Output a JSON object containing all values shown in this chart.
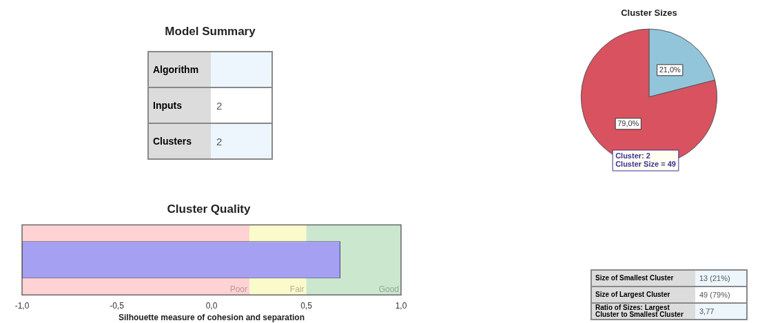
{
  "chart_data": [
    {
      "type": "other",
      "title": "Model Summary",
      "categories": [
        "Algorithm",
        "Inputs",
        "Clusters"
      ],
      "values": [
        null,
        2,
        2
      ],
      "data_labels": true
    },
    {
      "type": "pie",
      "title": "Cluster Sizes",
      "categories": [
        null,
        null
      ],
      "values": [
        21,
        79
      ],
      "colors": [
        "#92c5da",
        "#d9525f"
      ],
      "value_labels": [
        "21,0%",
        "79,0%"
      ],
      "annotations": [
        "Cluster: 2\nCluster Size = 49"
      ]
    },
    {
      "type": "bar",
      "orientation": "horizontal",
      "title": "Cluster Quality",
      "xlabel": "Silhouette measure of cohesion and separation",
      "categories": [
        null
      ],
      "base": [
        -1
      ],
      "values": [
        1.68
      ],
      "color": "#a5a0f2",
      "xlim": [
        -1,
        1
      ],
      "xticks": [
        {
          "value": -1,
          "label": "-1,0"
        },
        {
          "value": -0.5,
          "label": "-0,5"
        },
        {
          "value": 0,
          "label": "0,0"
        },
        {
          "value": 0.5,
          "label": "0,5"
        },
        {
          "value": 1,
          "label": "1,0"
        }
      ],
      "tick_labels": "x",
      "grid": false,
      "bands": [
        {
          "axis": "x",
          "from": -1,
          "to": 0.2,
          "label": "Poor",
          "color": "#ffd3d3"
        },
        {
          "axis": "x",
          "from": 0.2,
          "to": 0.5,
          "label": "Fair",
          "color": "#fafacb"
        },
        {
          "axis": "x",
          "from": 0.5,
          "to": 1,
          "label": "Good",
          "color": "#cbe8cf"
        }
      ]
    },
    {
      "type": "other",
      "categories": [
        "Size of Smallest Cluster",
        "Size of Largest Cluster",
        "Ratio of Sizes: Largest Cluster to Smallest Cluster"
      ],
      "value_labels": [
        "13 (21%)",
        "49 (79%)",
        "3,77"
      ]
    }
  ]
}
